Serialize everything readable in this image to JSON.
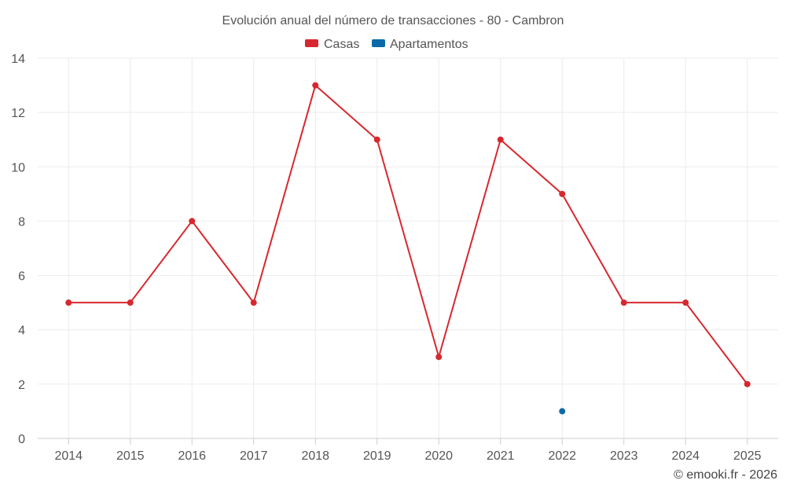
{
  "chart_data": {
    "type": "line",
    "title": "Evolución anual del número de transacciones - 80 - Cambron",
    "categories": [
      "2014",
      "2015",
      "2016",
      "2017",
      "2018",
      "2019",
      "2020",
      "2021",
      "2022",
      "2023",
      "2024",
      "2025"
    ],
    "series": [
      {
        "name": "Casas",
        "color": "#d7282f",
        "values": [
          5,
          5,
          8,
          5,
          13,
          11,
          3,
          11,
          9,
          5,
          5,
          2
        ]
      },
      {
        "name": "Apartamentos",
        "color": "#0d6aa8",
        "values": [
          null,
          null,
          null,
          null,
          null,
          null,
          null,
          null,
          1,
          null,
          null,
          null
        ]
      }
    ],
    "y_ticks": [
      "0",
      "2",
      "4",
      "6",
      "8",
      "10",
      "12",
      "14"
    ],
    "ylim": [
      0,
      14
    ],
    "grid": true,
    "legend_position": "top-center"
  },
  "credit": "© emooki.fr - 2026"
}
